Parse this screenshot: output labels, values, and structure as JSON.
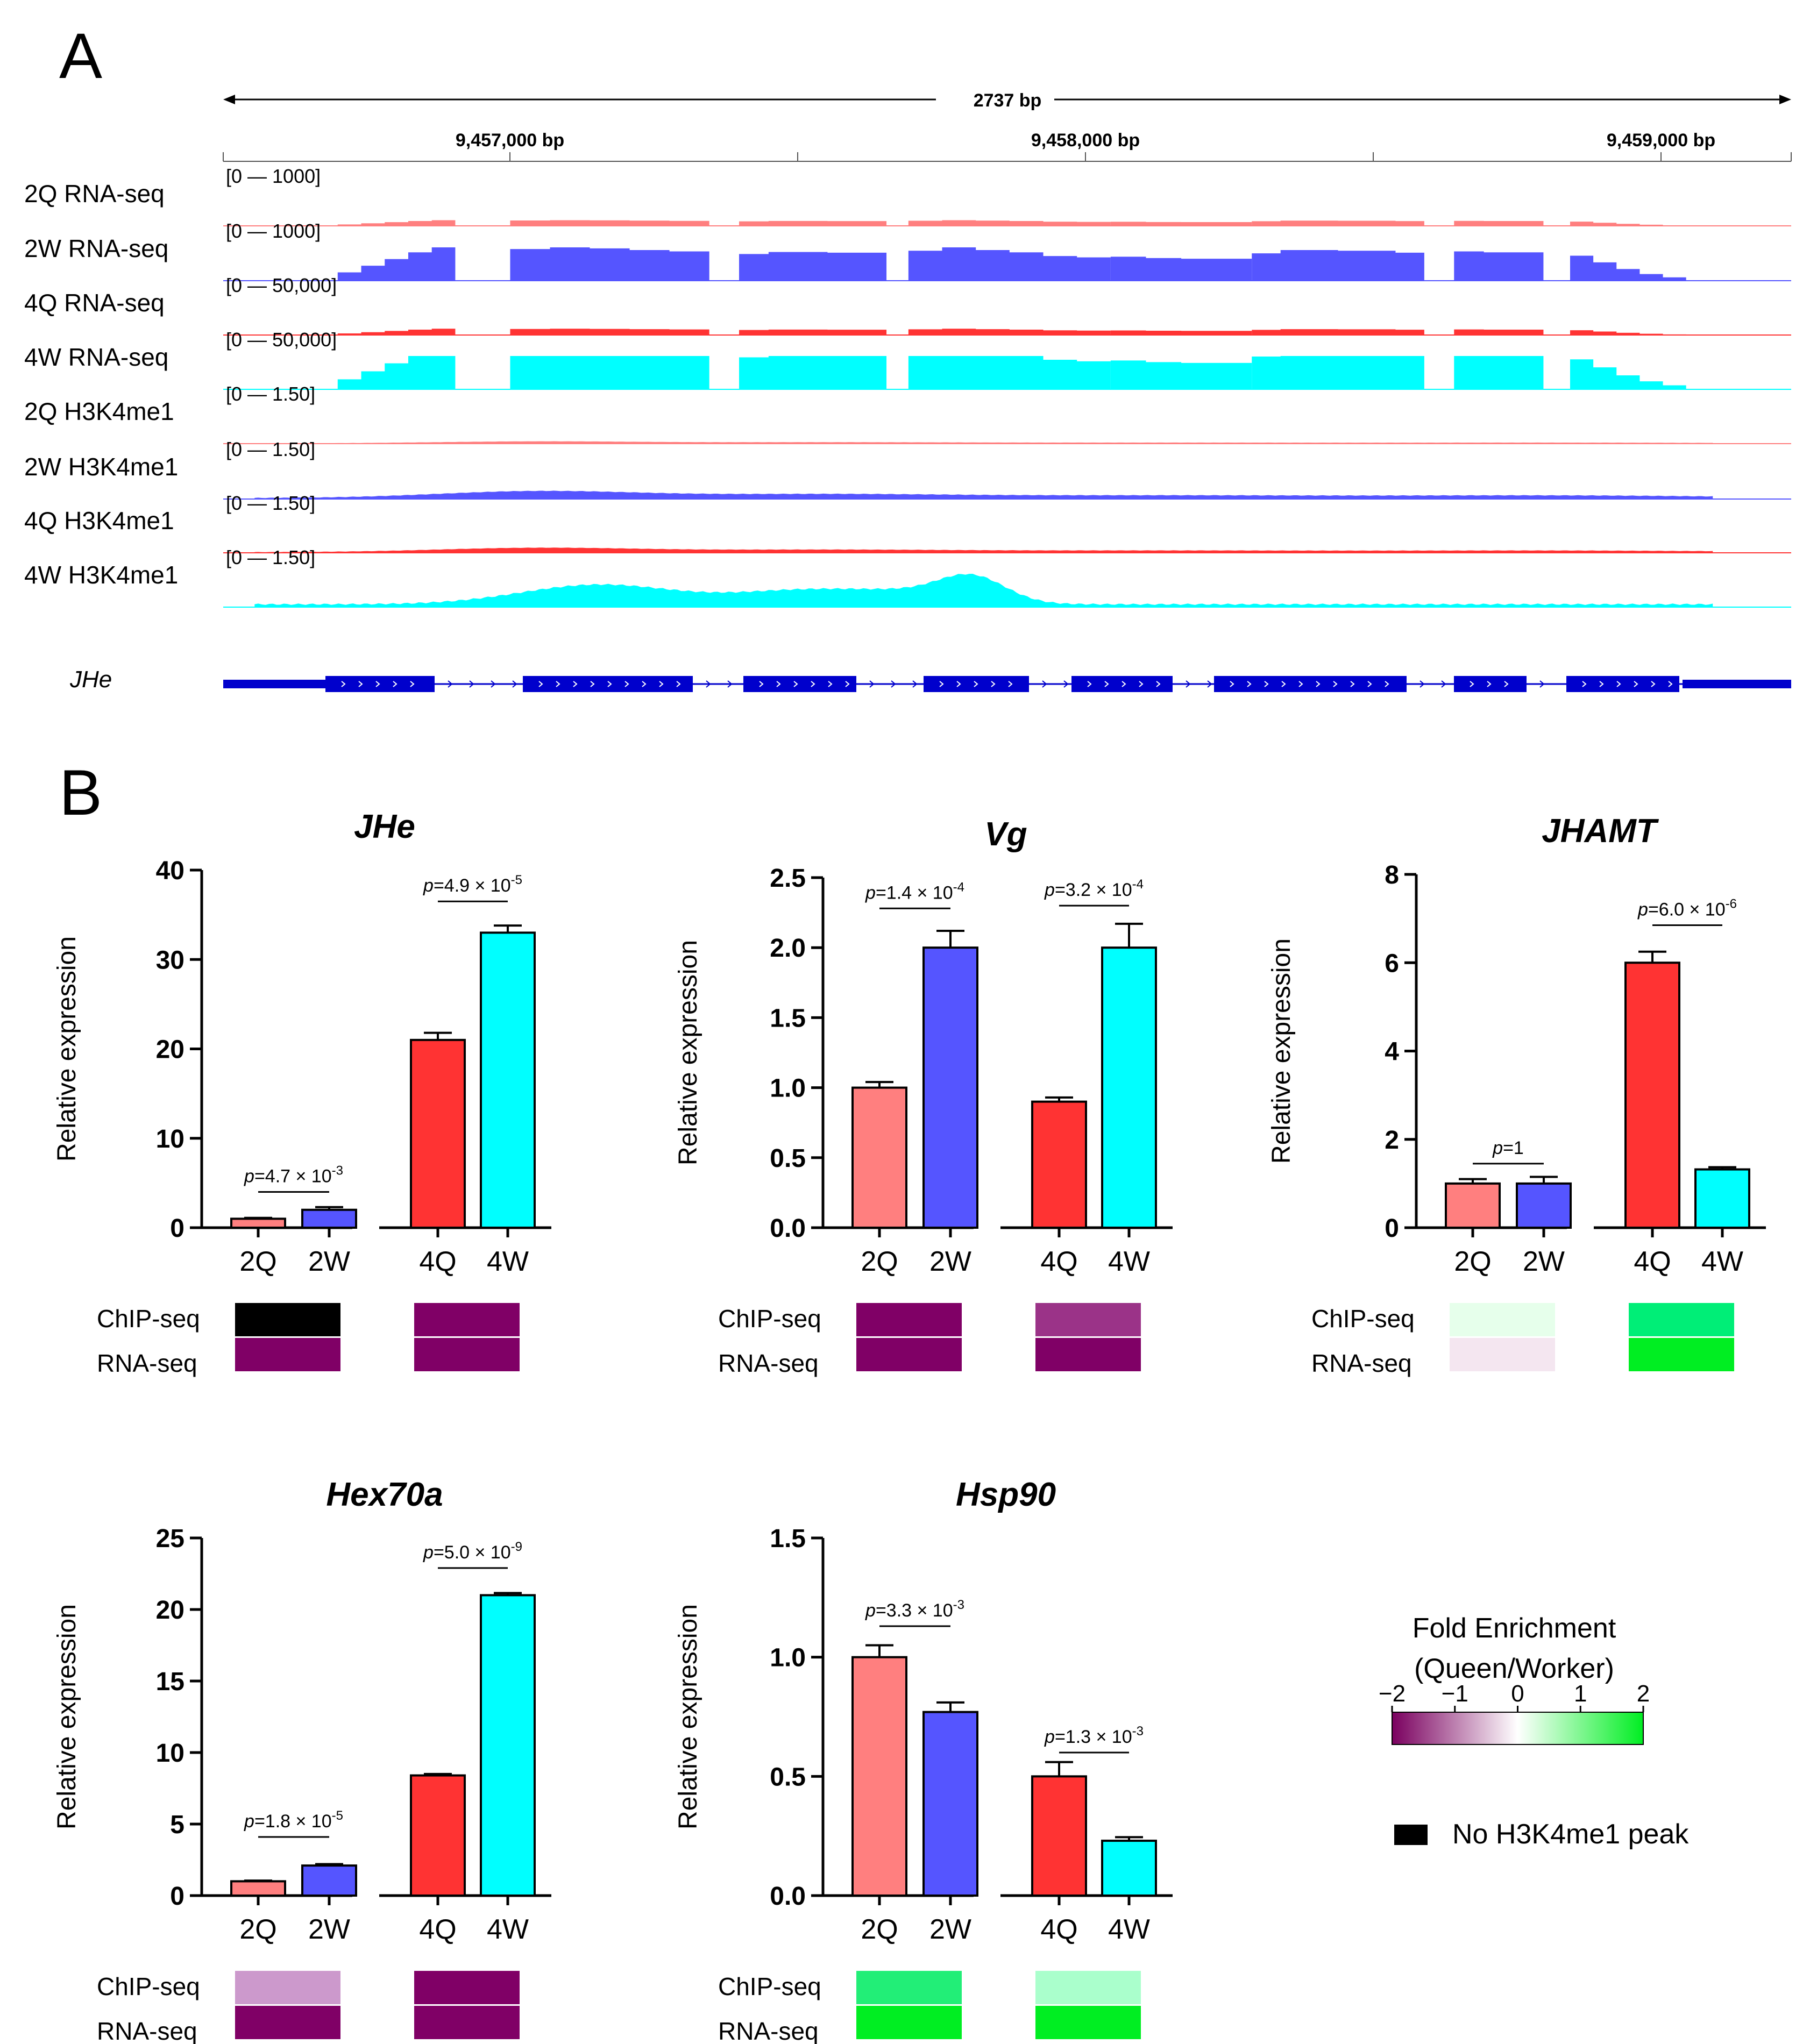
{
  "panel_a": {
    "label": "A",
    "ruler": {
      "span_text": "2737 bp",
      "coord_labels": [
        "9,457,000 bp",
        "9,458,000 bp",
        "9,459,000 bp"
      ]
    },
    "tracks": [
      {
        "name": "2Q RNA-seq",
        "range": "[0 — 1000]",
        "color": "#FF7F7F",
        "kind": "rna",
        "scale": 0.17
      },
      {
        "name": "2W RNA-seq",
        "range": "[0 — 1000]",
        "color": "#5555FF",
        "kind": "rna",
        "scale": 1.0
      },
      {
        "name": "4Q RNA-seq",
        "range": "[0 — 50,000]",
        "color": "#FF3333",
        "kind": "rna",
        "scale": 0.19
      },
      {
        "name": "4W RNA-seq",
        "range": "[0 — 50,000]",
        "color": "#00FFFF",
        "kind": "rna",
        "scale": 1.2
      },
      {
        "name": "2Q H3K4me1",
        "range": "[0 — 1.50]",
        "color": "#FF7F7F",
        "kind": "chip",
        "scale": 0.1
      },
      {
        "name": "2W H3K4me1",
        "range": "[0 — 1.50]",
        "color": "#5555FF",
        "kind": "chip",
        "scale": 0.35
      },
      {
        "name": "4Q H3K4me1",
        "range": "[0 — 1.50]",
        "color": "#FF3333",
        "kind": "chip",
        "scale": 0.22
      },
      {
        "name": "4W H3K4me1",
        "range": "[0 — 1.50]",
        "color": "#00FFFF",
        "kind": "chip",
        "scale": 1.0
      }
    ],
    "gene_label": "JHe",
    "gene_color": "#0000CC"
  },
  "panel_b": {
    "label": "B",
    "ylabel": "Relative expression",
    "row_labels": [
      "ChIP-seq",
      "RNA-seq"
    ]
  },
  "chart_data": [
    {
      "type": "bar",
      "title": "JHe",
      "ylabel": "Relative expression",
      "categories": [
        "2Q",
        "2W",
        "4Q",
        "4W"
      ],
      "values": [
        1.0,
        2.0,
        21.0,
        33.0
      ],
      "errors": [
        0.1,
        0.3,
        0.8,
        0.8
      ],
      "colors": [
        "#FF7F7F",
        "#5555FF",
        "#FF3333",
        "#00FFFF"
      ],
      "ylim": [
        0,
        40
      ],
      "yticks": [
        "0",
        "10",
        "20",
        "30",
        "40"
      ],
      "pvalues": [
        {
          "text": "p=4.7 × 10",
          "exp": "-3",
          "pair": [
            0,
            1
          ],
          "y": 4.0
        },
        {
          "text": "p=4.9 × 10",
          "exp": "-5",
          "pair": [
            2,
            3
          ],
          "y": 36.5
        }
      ],
      "heatmap": {
        "chip": [
          "#000000",
          "#800066"
        ],
        "rna": [
          "#800066",
          "#800066"
        ]
      }
    },
    {
      "type": "bar",
      "title": "Vg",
      "ylabel": "Relative expression",
      "categories": [
        "2Q",
        "2W",
        "4Q",
        "4W"
      ],
      "values": [
        1.0,
        2.0,
        0.9,
        2.0
      ],
      "errors": [
        0.04,
        0.12,
        0.03,
        0.17
      ],
      "colors": [
        "#FF7F7F",
        "#5555FF",
        "#FF3333",
        "#00FFFF"
      ],
      "ylim": [
        0,
        2.5
      ],
      "yticks": [
        "0.0",
        "0.5",
        "1.0",
        "1.5",
        "2.0",
        "2.5"
      ],
      "pvalues": [
        {
          "text": "p=1.4 × 10",
          "exp": "-4",
          "pair": [
            0,
            1
          ],
          "y": 2.28
        },
        {
          "text": "p=3.2 × 10",
          "exp": "-4",
          "pair": [
            2,
            3
          ],
          "y": 2.3
        }
      ],
      "heatmap": {
        "chip": [
          "#800066",
          "#9B3388"
        ],
        "rna": [
          "#800066",
          "#800066"
        ]
      }
    },
    {
      "type": "bar",
      "title": "JHAMT",
      "ylabel": "Relative expression",
      "categories": [
        "2Q",
        "2W",
        "4Q",
        "4W"
      ],
      "values": [
        1.0,
        1.0,
        6.0,
        1.32
      ],
      "errors": [
        0.1,
        0.15,
        0.25,
        0.05
      ],
      "colors": [
        "#FF7F7F",
        "#5555FF",
        "#FF3333",
        "#00FFFF"
      ],
      "ylim": [
        0,
        8
      ],
      "yticks": [
        "0",
        "2",
        "4",
        "6",
        "8"
      ],
      "pvalues": [
        {
          "text": "p=1",
          "exp": "",
          "pair": [
            0,
            1
          ],
          "y": 1.45
        },
        {
          "text": "p=6.0 × 10",
          "exp": "-6",
          "pair": [
            2,
            3
          ],
          "y": 6.85
        }
      ],
      "heatmap": {
        "chip": [
          "#E6FFEB",
          "#00EE77"
        ],
        "rna": [
          "#F4E6F0",
          "#00EE22"
        ]
      }
    },
    {
      "type": "bar",
      "title": "Hex70a",
      "ylabel": "Relative expression",
      "categories": [
        "2Q",
        "2W",
        "4Q",
        "4W"
      ],
      "values": [
        1.0,
        2.1,
        8.4,
        21.0
      ],
      "errors": [
        0.05,
        0.1,
        0.1,
        0.15
      ],
      "colors": [
        "#FF7F7F",
        "#5555FF",
        "#FF3333",
        "#00FFFF"
      ],
      "ylim": [
        0,
        25
      ],
      "yticks": [
        "0",
        "5",
        "10",
        "15",
        "20",
        "25"
      ],
      "pvalues": [
        {
          "text": "p=1.8 × 10",
          "exp": "-5",
          "pair": [
            0,
            1
          ],
          "y": 4.1
        },
        {
          "text": "p=5.0 × 10",
          "exp": "-9",
          "pair": [
            2,
            3
          ],
          "y": 22.9
        }
      ],
      "heatmap": {
        "chip": [
          "#CC99CC",
          "#800066"
        ],
        "rna": [
          "#800066",
          "#800066"
        ]
      }
    },
    {
      "type": "bar",
      "title": "Hsp90",
      "ylabel": "Relative expression",
      "categories": [
        "2Q",
        "2W",
        "4Q",
        "4W"
      ],
      "values": [
        1.0,
        0.77,
        0.5,
        0.23
      ],
      "errors": [
        0.05,
        0.04,
        0.06,
        0.015
      ],
      "colors": [
        "#FF7F7F",
        "#5555FF",
        "#FF3333",
        "#00FFFF"
      ],
      "ylim": [
        0,
        1.5
      ],
      "yticks": [
        "0.0",
        "0.5",
        "1.0",
        "1.5"
      ],
      "pvalues": [
        {
          "text": "p=3.3 × 10",
          "exp": "-3",
          "pair": [
            0,
            1
          ],
          "y": 1.13
        },
        {
          "text": "p=1.3 × 10",
          "exp": "-3",
          "pair": [
            2,
            3
          ],
          "y": 0.6
        }
      ],
      "heatmap": {
        "chip": [
          "#22EE77",
          "#AAFFCC"
        ],
        "rna": [
          "#00EE22",
          "#00EE22"
        ]
      }
    }
  ],
  "legend": {
    "title_line1": "Fold Enrichment",
    "title_line2": "(Queen/Worker)",
    "ticks": [
      "−2",
      "−1",
      "0",
      "1",
      "2"
    ],
    "gradient": [
      "#7A005F",
      "#FFFFFF",
      "#00EE22"
    ],
    "no_peak_label": "No H3K4me1 peak",
    "no_peak_color": "#000000"
  }
}
